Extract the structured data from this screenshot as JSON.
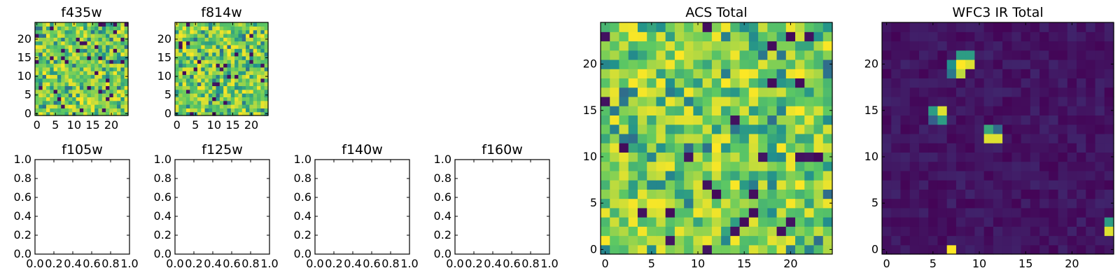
{
  "chart_data": [
    {
      "type": "heatmap",
      "title": "f435w",
      "grid_size": 25,
      "xticks": [
        "0",
        "5",
        "10",
        "15",
        "20"
      ],
      "yticks": [
        "0",
        "5",
        "10",
        "15",
        "20"
      ],
      "colormap": "viridis",
      "value_range": [
        0,
        1
      ],
      "content": "noise"
    },
    {
      "type": "heatmap",
      "title": "f814w",
      "grid_size": 25,
      "xticks": [
        "0",
        "5",
        "10",
        "15",
        "20"
      ],
      "yticks": [
        "0",
        "5",
        "10",
        "15",
        "20"
      ],
      "colormap": "viridis",
      "value_range": [
        0,
        1
      ],
      "content": "noise"
    },
    {
      "type": "empty",
      "title": "f105w",
      "xticks": [
        "0.0",
        "0.2",
        "0.4",
        "0.6",
        "0.8",
        "1.0"
      ],
      "yticks": [
        "0.0",
        "0.2",
        "0.4",
        "0.6",
        "0.8",
        "1.0"
      ],
      "xlim": [
        0,
        1
      ],
      "ylim": [
        0,
        1
      ]
    },
    {
      "type": "empty",
      "title": "f125w",
      "xticks": [
        "0.0",
        "0.2",
        "0.4",
        "0.6",
        "0.8",
        "1.0"
      ],
      "yticks": [
        "0.0",
        "0.2",
        "0.4",
        "0.6",
        "0.8",
        "1.0"
      ],
      "xlim": [
        0,
        1
      ],
      "ylim": [
        0,
        1
      ]
    },
    {
      "type": "empty",
      "title": "f140w",
      "xticks": [
        "0.0",
        "0.2",
        "0.4",
        "0.6",
        "0.8",
        "1.0"
      ],
      "yticks": [
        "0.0",
        "0.2",
        "0.4",
        "0.6",
        "0.8",
        "1.0"
      ],
      "xlim": [
        0,
        1
      ],
      "ylim": [
        0,
        1
      ]
    },
    {
      "type": "empty",
      "title": "f160w",
      "xticks": [
        "0.0",
        "0.2",
        "0.4",
        "0.6",
        "0.8",
        "1.0"
      ],
      "yticks": [
        "0.0",
        "0.2",
        "0.4",
        "0.6",
        "0.8",
        "1.0"
      ],
      "xlim": [
        0,
        1
      ],
      "ylim": [
        0,
        1
      ]
    },
    {
      "type": "heatmap",
      "title": "ACS Total",
      "grid_size": 25,
      "xticks": [
        "0",
        "5",
        "10",
        "15",
        "20"
      ],
      "yticks": [
        "0",
        "5",
        "10",
        "15",
        "20"
      ],
      "colormap": "viridis",
      "value_range": [
        0,
        1
      ],
      "content": "noise"
    },
    {
      "type": "heatmap",
      "title": "WFC3 IR Total",
      "grid_size": 25,
      "xticks": [
        "0",
        "5",
        "10",
        "15",
        "20"
      ],
      "yticks": [
        "0",
        "5",
        "10",
        "15",
        "20"
      ],
      "colormap": "viridis",
      "value_range": [
        0,
        1
      ],
      "content": "sources",
      "hot_cells": [
        [
          7,
          0,
          1.0
        ],
        [
          8,
          19,
          0.9
        ],
        [
          9,
          20,
          0.95
        ],
        [
          8,
          20,
          1.0
        ],
        [
          9,
          21,
          0.55
        ],
        [
          8,
          21,
          0.55
        ],
        [
          7,
          20,
          0.5
        ],
        [
          7,
          19,
          0.4
        ],
        [
          5,
          15,
          0.55
        ],
        [
          6,
          15,
          0.95
        ],
        [
          6,
          14,
          0.55
        ],
        [
          5,
          14,
          0.3
        ],
        [
          11,
          12,
          0.95
        ],
        [
          12,
          12,
          0.95
        ],
        [
          11,
          13,
          0.6
        ],
        [
          12,
          13,
          0.35
        ],
        [
          24,
          2,
          0.95
        ],
        [
          24,
          3,
          0.55
        ]
      ]
    }
  ],
  "colors": {
    "viridis": [
      "#440154",
      "#3b528b",
      "#21918c",
      "#5ec962",
      "#fde725"
    ]
  }
}
